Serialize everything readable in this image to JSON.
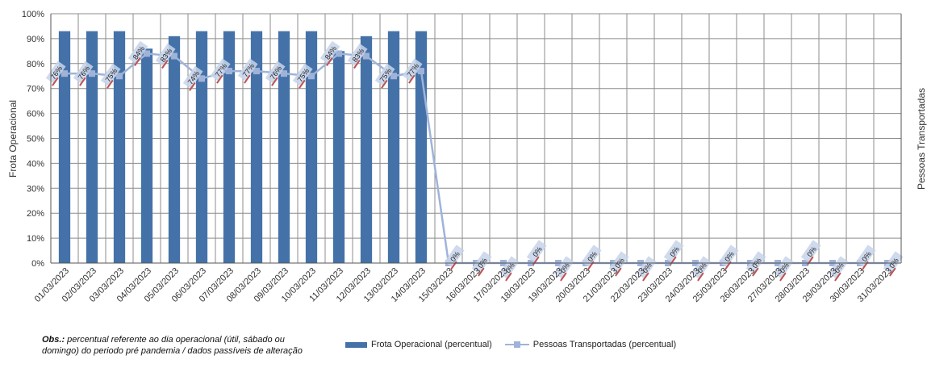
{
  "chart_data": {
    "type": "bar",
    "categories": [
      "01/03/2023",
      "02/03/2023",
      "03/03/2023",
      "04/03/2023",
      "05/03/2023",
      "06/03/2023",
      "07/03/2023",
      "08/03/2023",
      "09/03/2023",
      "10/03/2023",
      "11/03/2023",
      "12/03/2023",
      "13/03/2023",
      "14/03/2023",
      "15/03/2023",
      "16/03/2023",
      "17/03/2023",
      "18/03/2023",
      "19/03/2023",
      "20/03/2023",
      "21/03/2023",
      "22/03/2023",
      "23/03/2023",
      "24/03/2023",
      "25/03/2023",
      "26/03/2023",
      "27/03/2023",
      "28/03/2023",
      "29/03/2023",
      "30/03/2023",
      "31/03/2023"
    ],
    "series": [
      {
        "name": "Frota Operacional (percentual)",
        "type": "bar",
        "color": "#4472a8",
        "values": [
          93,
          93,
          93,
          86,
          91,
          93,
          93,
          93,
          93,
          93,
          85,
          91,
          93,
          93,
          0,
          0,
          0,
          0,
          0,
          0,
          0,
          0,
          0,
          0,
          0,
          0,
          0,
          0,
          0,
          0,
          0
        ]
      },
      {
        "name": "Pessoas Transportadas (percentual)",
        "type": "line",
        "color": "#9fb3d9",
        "values": [
          76,
          76,
          75,
          84,
          83,
          74,
          77,
          77,
          76,
          75,
          84,
          83,
          75,
          77,
          0,
          0,
          0,
          0,
          0,
          0,
          0,
          0,
          0,
          0,
          0,
          0,
          0,
          0,
          0,
          0,
          0
        ]
      }
    ],
    "data_labels": [
      "76%",
      "76%",
      "75%",
      "84%",
      "83%",
      "74%",
      "77%",
      "77%",
      "76%",
      "75%",
      "84%",
      "83%",
      "75%",
      "77%",
      "0%",
      "0%",
      "0%",
      "0%",
      "0%",
      "0%",
      "0%",
      "0%",
      "0%",
      "0%",
      "0%",
      "0%",
      "0%",
      "0%",
      "0%",
      "0%",
      "0%"
    ],
    "y_ticks": [
      "0%",
      "10%",
      "20%",
      "30%",
      "40%",
      "50%",
      "60%",
      "70%",
      "80%",
      "90%",
      "100%"
    ],
    "ylim": [
      0,
      100
    ],
    "ylabel": "Frota Operacional",
    "y2label": "Pessoas Transportadas",
    "grid": true,
    "legend_position": "bottom"
  },
  "footnote": {
    "bold": "Obs.:",
    "text": " percentual referente ao dia operacional (útil, sábado ou domingo) do periodo pré pandemia / dados passíveis de alteração"
  }
}
